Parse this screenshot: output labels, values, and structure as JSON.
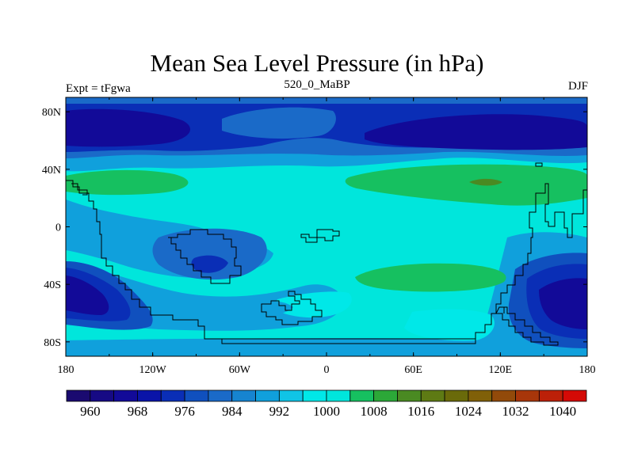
{
  "title": "Mean Sea Level Pressure (in hPa)",
  "left_label": "Expt = tFgwa",
  "center_label": "520_0_MaBP",
  "right_label": "DJF",
  "map": {
    "type": "filled-contour",
    "lon_ticks": [
      "180",
      "120W",
      "60W",
      "0",
      "60E",
      "120E",
      "180"
    ],
    "lat_ticks": [
      "80N",
      "40N",
      "0",
      "40S",
      "80S"
    ],
    "lon_tick_values": [
      -180,
      -120,
      -60,
      0,
      60,
      120,
      180
    ],
    "lat_tick_values": [
      80,
      40,
      0,
      -40,
      -80
    ]
  },
  "colorbar": {
    "levels": [
      956,
      960,
      964,
      968,
      972,
      976,
      980,
      984,
      988,
      992,
      996,
      1000,
      1004,
      1008,
      1012,
      1016,
      1020,
      1024,
      1028,
      1032,
      1036,
      1040
    ],
    "labels": [
      "960",
      "968",
      "976",
      "984",
      "992",
      "1000",
      "1008",
      "1016",
      "1024",
      "1032",
      "1040"
    ],
    "colors": [
      "#1a0a70",
      "#160a84",
      "#120a98",
      "#0a14a8",
      "#0a2eb6",
      "#1050be",
      "#1a6ac8",
      "#1684d0",
      "#10a0dc",
      "#10c4e6",
      "#00e8e8",
      "#00e6dc",
      "#16c060",
      "#2ca838",
      "#4a8a22",
      "#5e7a14",
      "#6a6a0a",
      "#806008",
      "#924a0a",
      "#a8360a",
      "#bc2008",
      "#d40a06"
    ]
  }
}
